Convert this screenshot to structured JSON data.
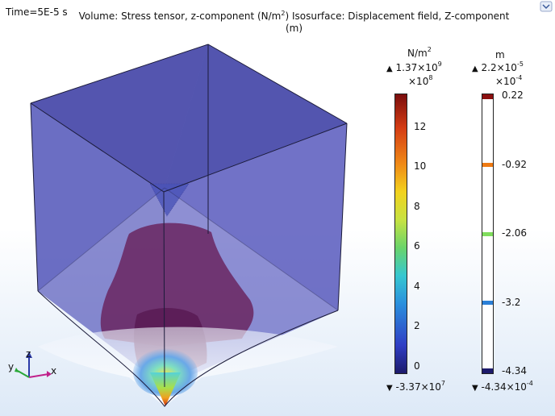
{
  "header": {
    "time": "Time=5E-5 s",
    "title_line1": "Volume: Stress tensor, z-component (N/m",
    "title_sup": "2",
    "title_line1_end": ")  Isosurface: Displacement field, Z-component",
    "title_line2": "(m)"
  },
  "legend_stress": {
    "unit": "N/m",
    "unit_sup": "2",
    "max_label": "1.37×10",
    "max_exp": "9",
    "scale": "×10",
    "scale_exp": "8",
    "ticks": [
      "12",
      "10",
      "8",
      "6",
      "4",
      "2",
      "0"
    ],
    "min_label": "-3.37×10",
    "min_exp": "7"
  },
  "legend_disp": {
    "unit": "m",
    "max_label": "2.2×10",
    "max_exp": "-5",
    "scale": "×10",
    "scale_exp": "-4",
    "ticks": [
      "0.22",
      "-0.92",
      "-2.06",
      "-3.2",
      "-4.34"
    ],
    "min_label": "-4.34×10",
    "min_exp": "-4",
    "band_colors": [
      "#8b0f0f",
      "#ee7a12",
      "#7fdc5c",
      "#2b7fd6",
      "#1c1a6b"
    ]
  },
  "axes": {
    "x": "x",
    "y": "y",
    "z": "z"
  },
  "colors": {
    "cube_face": "#4c4fb3",
    "cube_edge": "#1b1b3a",
    "accent": "#2a90dd"
  }
}
